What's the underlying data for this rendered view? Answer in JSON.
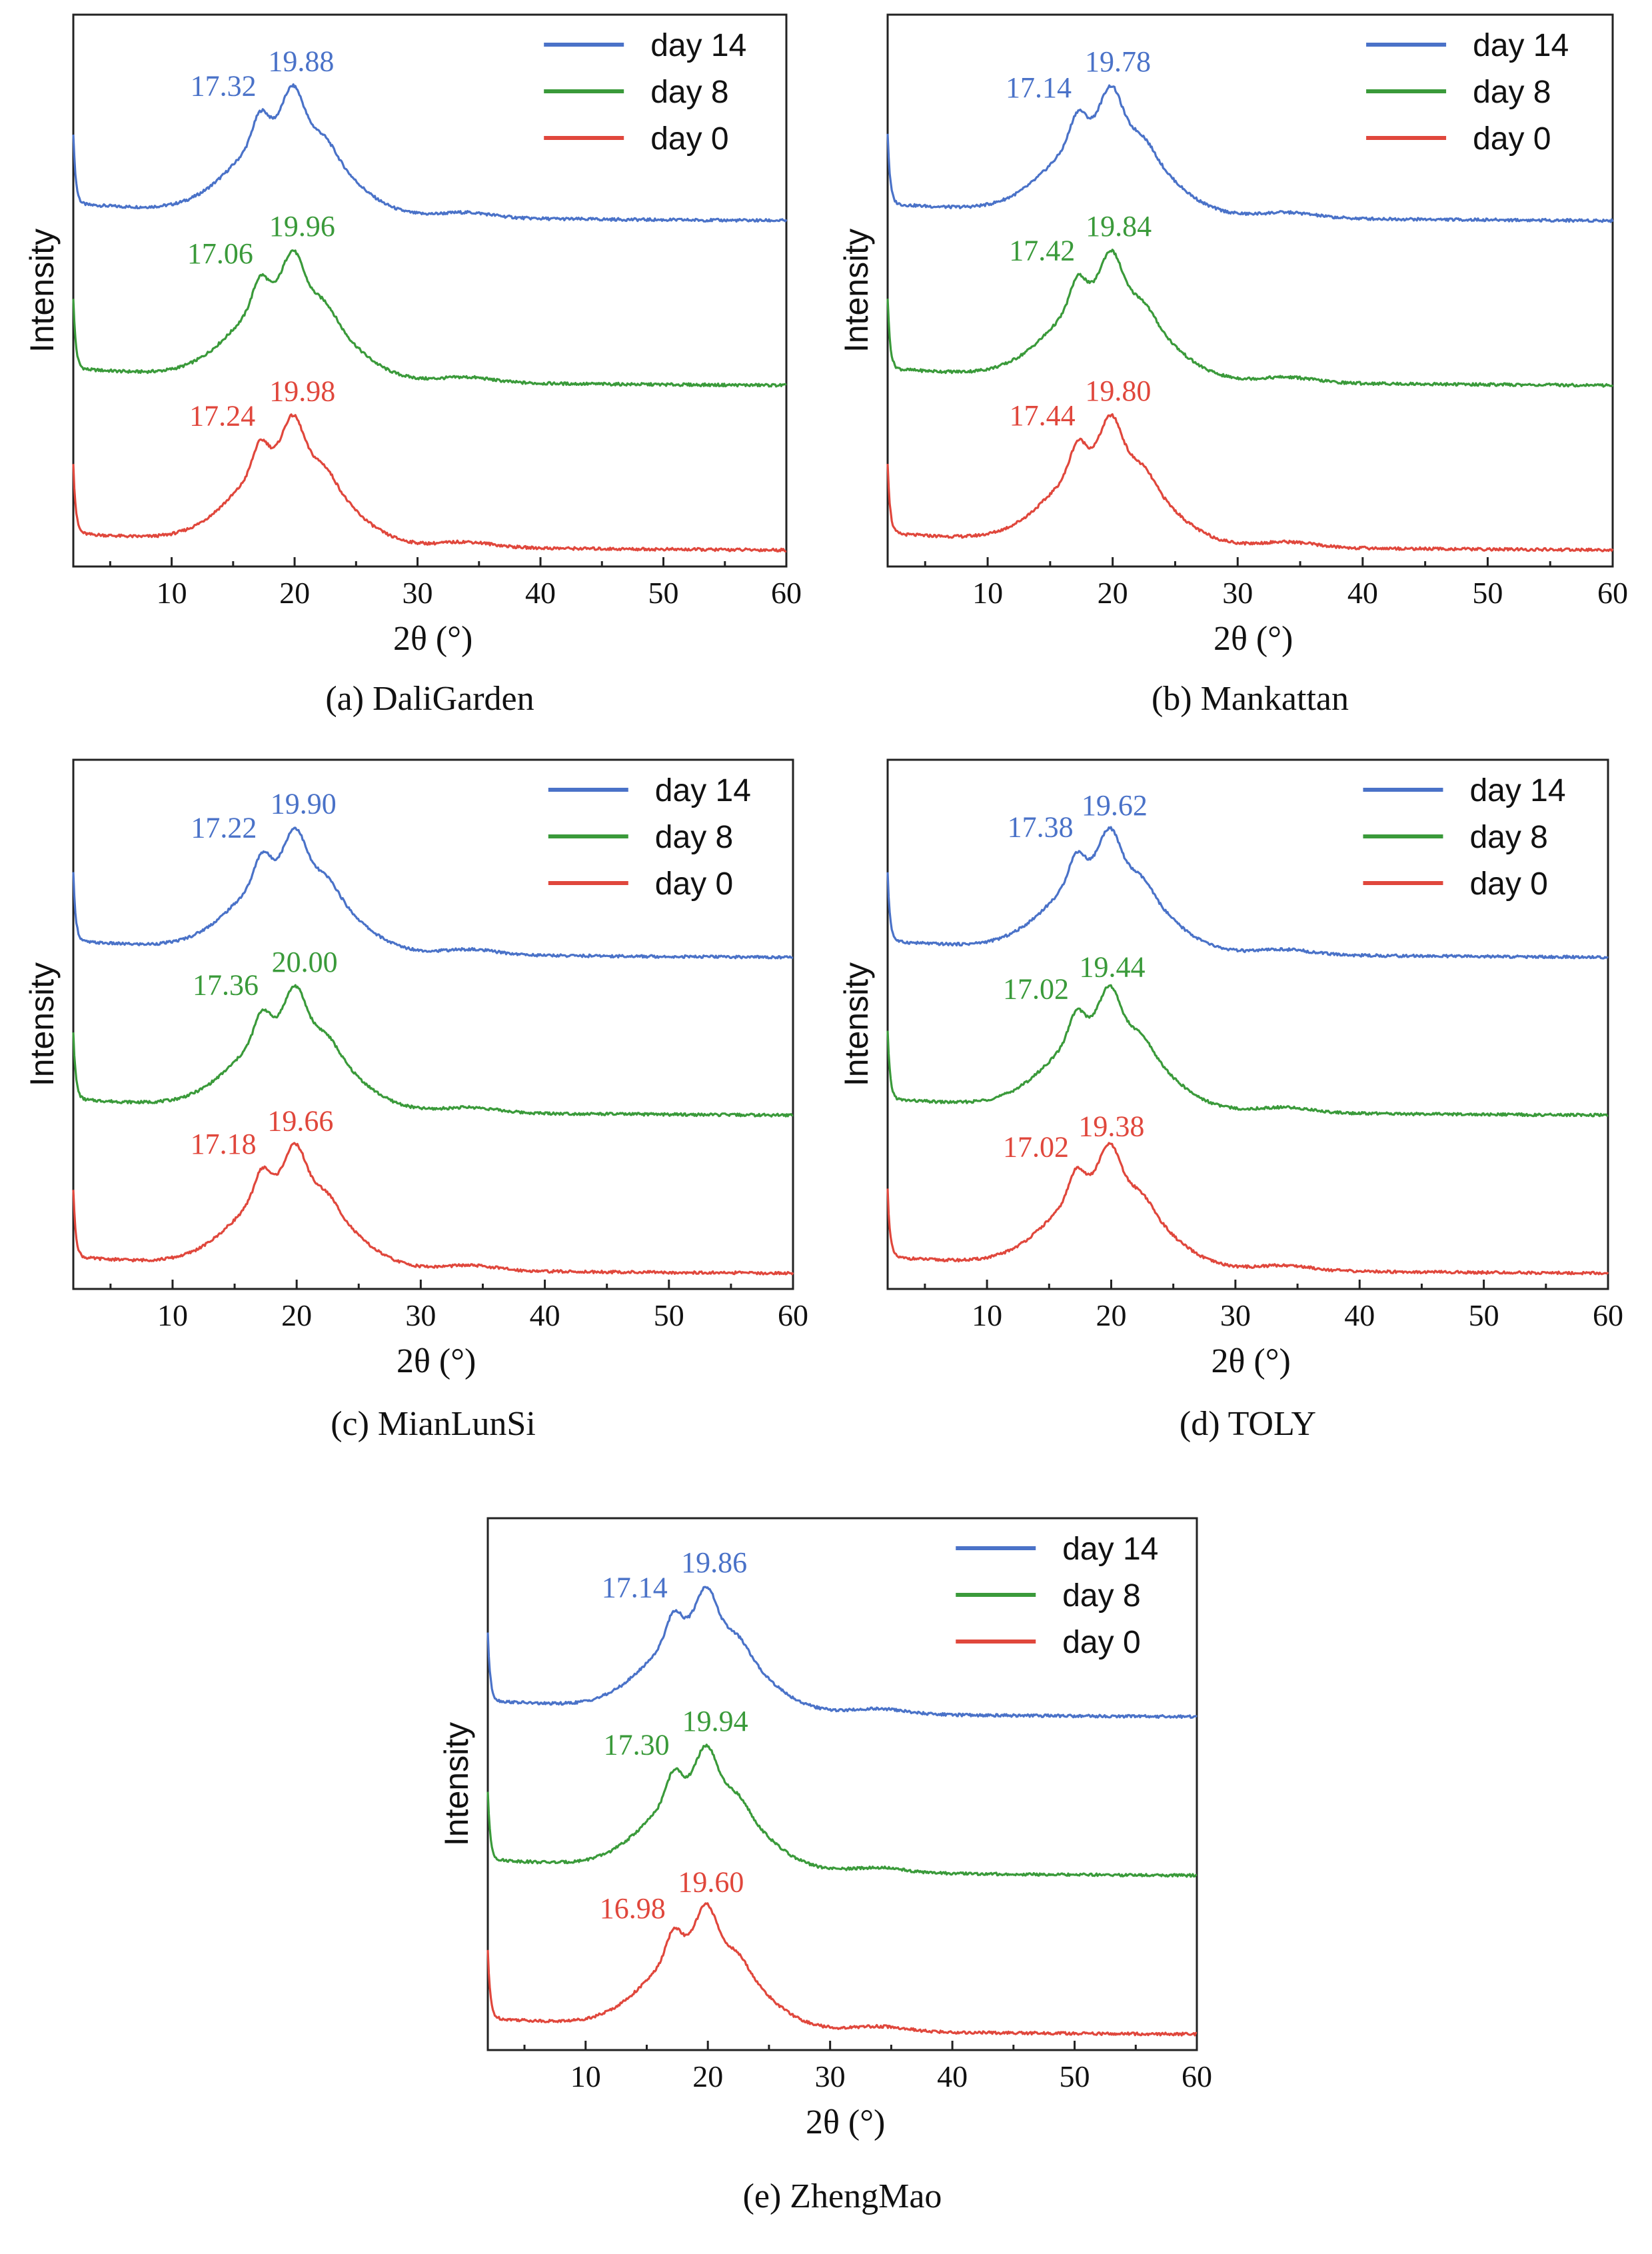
{
  "chart_data": [
    {
      "type": "line",
      "caption": "(a) DaliGarden",
      "xlabel": "2θ (°)",
      "ylabel": "Intensity",
      "xlim": [
        2,
        60
      ],
      "xticks": [
        10,
        20,
        30,
        40,
        50,
        60
      ],
      "y_ticks_shown": false,
      "legend_position": "top-right",
      "series": [
        {
          "name": "day 14",
          "color": "#4a72c8",
          "peaks": [
            {
              "label": "17.32",
              "x": 17.32
            },
            {
              "label": "19.88",
              "x": 19.88
            }
          ]
        },
        {
          "name": "day 8",
          "color": "#3a9a3a",
          "peaks": [
            {
              "label": "17.06",
              "x": 17.06
            },
            {
              "label": "19.96",
              "x": 19.96
            }
          ]
        },
        {
          "name": "day 0",
          "color": "#e0473c",
          "peaks": [
            {
              "label": "17.24",
              "x": 17.24
            },
            {
              "label": "19.98",
              "x": 19.98
            }
          ]
        }
      ]
    },
    {
      "type": "line",
      "caption": "(b) Mankattan",
      "xlabel": "2θ (°)",
      "ylabel": "Intensity",
      "xlim": [
        2,
        60
      ],
      "xticks": [
        10,
        20,
        30,
        40,
        50,
        60
      ],
      "y_ticks_shown": false,
      "legend_position": "top-right",
      "series": [
        {
          "name": "day 14",
          "color": "#4a72c8",
          "peaks": [
            {
              "label": "17.14",
              "x": 17.14
            },
            {
              "label": "19.78",
              "x": 19.78
            }
          ]
        },
        {
          "name": "day 8",
          "color": "#3a9a3a",
          "peaks": [
            {
              "label": "17.42",
              "x": 17.42
            },
            {
              "label": "19.84",
              "x": 19.84
            }
          ]
        },
        {
          "name": "day 0",
          "color": "#e0473c",
          "peaks": [
            {
              "label": "17.44",
              "x": 17.44
            },
            {
              "label": "19.80",
              "x": 19.8
            }
          ]
        }
      ]
    },
    {
      "type": "line",
      "caption": "(c) MianLunSi",
      "xlabel": "2θ (°)",
      "ylabel": "Intensity",
      "xlim": [
        2,
        60
      ],
      "xticks": [
        10,
        20,
        30,
        40,
        50,
        60
      ],
      "y_ticks_shown": false,
      "legend_position": "top-right",
      "series": [
        {
          "name": "day 14",
          "color": "#4a72c8",
          "peaks": [
            {
              "label": "17.22",
              "x": 17.22
            },
            {
              "label": "19.90",
              "x": 19.9
            }
          ]
        },
        {
          "name": "day 8",
          "color": "#3a9a3a",
          "peaks": [
            {
              "label": "17.36",
              "x": 17.36
            },
            {
              "label": "20.00",
              "x": 20.0
            }
          ]
        },
        {
          "name": "day 0",
          "color": "#e0473c",
          "peaks": [
            {
              "label": "17.18",
              "x": 17.18
            },
            {
              "label": "19.66",
              "x": 19.66
            }
          ]
        }
      ]
    },
    {
      "type": "line",
      "caption": "(d) TOLY",
      "xlabel": "2θ (°)",
      "ylabel": "Intensity",
      "xlim": [
        2,
        60
      ],
      "xticks": [
        10,
        20,
        30,
        40,
        50,
        60
      ],
      "y_ticks_shown": false,
      "legend_position": "top-right",
      "series": [
        {
          "name": "day 14",
          "color": "#4a72c8",
          "peaks": [
            {
              "label": "17.38",
              "x": 17.38
            },
            {
              "label": "19.62",
              "x": 19.62
            }
          ]
        },
        {
          "name": "day 8",
          "color": "#3a9a3a",
          "peaks": [
            {
              "label": "17.02",
              "x": 17.02
            },
            {
              "label": "19.44",
              "x": 19.44
            }
          ]
        },
        {
          "name": "day 0",
          "color": "#e0473c",
          "peaks": [
            {
              "label": "17.02",
              "x": 17.02
            },
            {
              "label": "19.38",
              "x": 19.38
            }
          ]
        }
      ]
    },
    {
      "type": "line",
      "caption": "(e) ZhengMao",
      "xlabel": "2θ (°)",
      "ylabel": "Intensity",
      "xlim": [
        2,
        60
      ],
      "xticks": [
        10,
        20,
        30,
        40,
        50,
        60
      ],
      "y_ticks_shown": false,
      "legend_position": "top-right",
      "series": [
        {
          "name": "day 14",
          "color": "#4a72c8",
          "peaks": [
            {
              "label": "17.14",
              "x": 17.14
            },
            {
              "label": "19.86",
              "x": 19.86
            }
          ]
        },
        {
          "name": "day 8",
          "color": "#3a9a3a",
          "peaks": [
            {
              "label": "17.30",
              "x": 17.3
            },
            {
              "label": "19.94",
              "x": 19.94
            }
          ]
        },
        {
          "name": "day 0",
          "color": "#e0473c",
          "peaks": [
            {
              "label": "16.98",
              "x": 16.98
            },
            {
              "label": "19.60",
              "x": 19.6
            }
          ]
        }
      ]
    }
  ]
}
